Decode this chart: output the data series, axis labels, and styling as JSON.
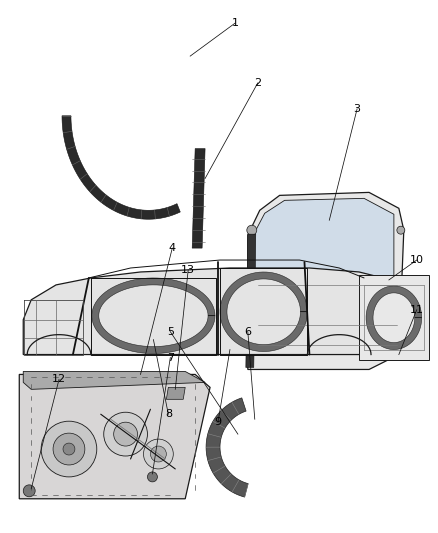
{
  "background_color": "#ffffff",
  "fig_width": 4.38,
  "fig_height": 5.33,
  "dpi": 100,
  "label_fontsize": 8,
  "label_color": "#000000",
  "line_color": "#111111",
  "dark_fill": "#2a2a2a",
  "mid_fill": "#888888",
  "light_fill": "#e0e0e0",
  "panel_fill": "#d8d6d6"
}
